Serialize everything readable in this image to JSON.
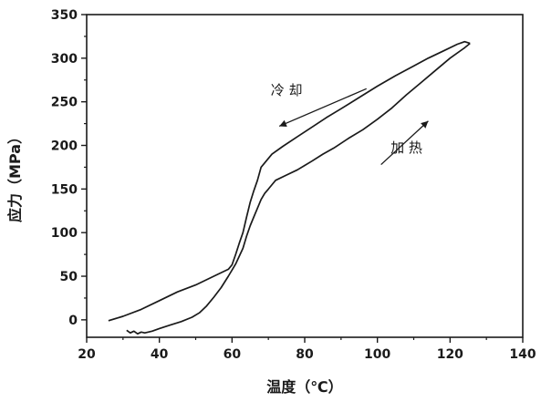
{
  "chart_data": {
    "type": "line",
    "xlabel": "温度（℃）",
    "ylabel": "应力（MPa）",
    "xlim": [
      20,
      140
    ],
    "ylim": [
      -20,
      350
    ],
    "xticks": [
      20,
      40,
      60,
      80,
      100,
      120,
      140
    ],
    "yticks": [
      0,
      50,
      100,
      150,
      200,
      250,
      300,
      350
    ],
    "grid": false,
    "legend": "none",
    "line_color": "#1a1a1a",
    "series": [
      {
        "points": [
          [
            31,
            -12
          ],
          [
            32,
            -15
          ],
          [
            33,
            -13
          ],
          [
            34,
            -16
          ],
          [
            35,
            -14
          ],
          [
            36,
            -15
          ],
          [
            38,
            -13
          ],
          [
            40,
            -10
          ],
          [
            43,
            -6
          ],
          [
            46,
            -2
          ],
          [
            49,
            3
          ],
          [
            51,
            8
          ],
          [
            53,
            16
          ],
          [
            55,
            26
          ],
          [
            57,
            37
          ],
          [
            59,
            50
          ],
          [
            61,
            64
          ],
          [
            63,
            82
          ],
          [
            64,
            96
          ],
          [
            65,
            108
          ],
          [
            66,
            118
          ],
          [
            67,
            128
          ],
          [
            68,
            138
          ],
          [
            69,
            145
          ],
          [
            70,
            150
          ],
          [
            71,
            155
          ],
          [
            72,
            160
          ],
          [
            75,
            166
          ],
          [
            78,
            172
          ],
          [
            80,
            177
          ],
          [
            82,
            182
          ],
          [
            85,
            190
          ],
          [
            88,
            197
          ],
          [
            92,
            208
          ],
          [
            96,
            218
          ],
          [
            100,
            230
          ],
          [
            104,
            243
          ],
          [
            108,
            258
          ],
          [
            112,
            272
          ],
          [
            116,
            286
          ],
          [
            120,
            300
          ],
          [
            124,
            312
          ],
          [
            125.5,
            317
          ]
        ]
      },
      {
        "points": [
          [
            125.5,
            317
          ],
          [
            124,
            319
          ],
          [
            122,
            316
          ],
          [
            118,
            308
          ],
          [
            114,
            300
          ],
          [
            110,
            291
          ],
          [
            105,
            280
          ],
          [
            100,
            268
          ],
          [
            95,
            255
          ],
          [
            90,
            242
          ],
          [
            86,
            232
          ],
          [
            82,
            221
          ],
          [
            78,
            210
          ],
          [
            74,
            199
          ],
          [
            71,
            190
          ],
          [
            68,
            175
          ],
          [
            67,
            160
          ],
          [
            66,
            148
          ],
          [
            65,
            135
          ],
          [
            64,
            118
          ],
          [
            63,
            100
          ],
          [
            62,
            88
          ],
          [
            61,
            75
          ],
          [
            60,
            63
          ],
          [
            59,
            58
          ],
          [
            55,
            50
          ],
          [
            50,
            40
          ],
          [
            45,
            32
          ],
          [
            40,
            22
          ],
          [
            35,
            12
          ],
          [
            30,
            4
          ],
          [
            26,
            -1
          ]
        ]
      }
    ],
    "annotations": [
      {
        "text": "冷 却",
        "x": 75,
        "y": 258,
        "arrow_from": [
          97,
          265
        ],
        "arrow_to": [
          73,
          222
        ]
      },
      {
        "text": "加 热",
        "x": 108,
        "y": 192,
        "arrow_from": [
          101,
          178
        ],
        "arrow_to": [
          114,
          228
        ]
      }
    ]
  }
}
